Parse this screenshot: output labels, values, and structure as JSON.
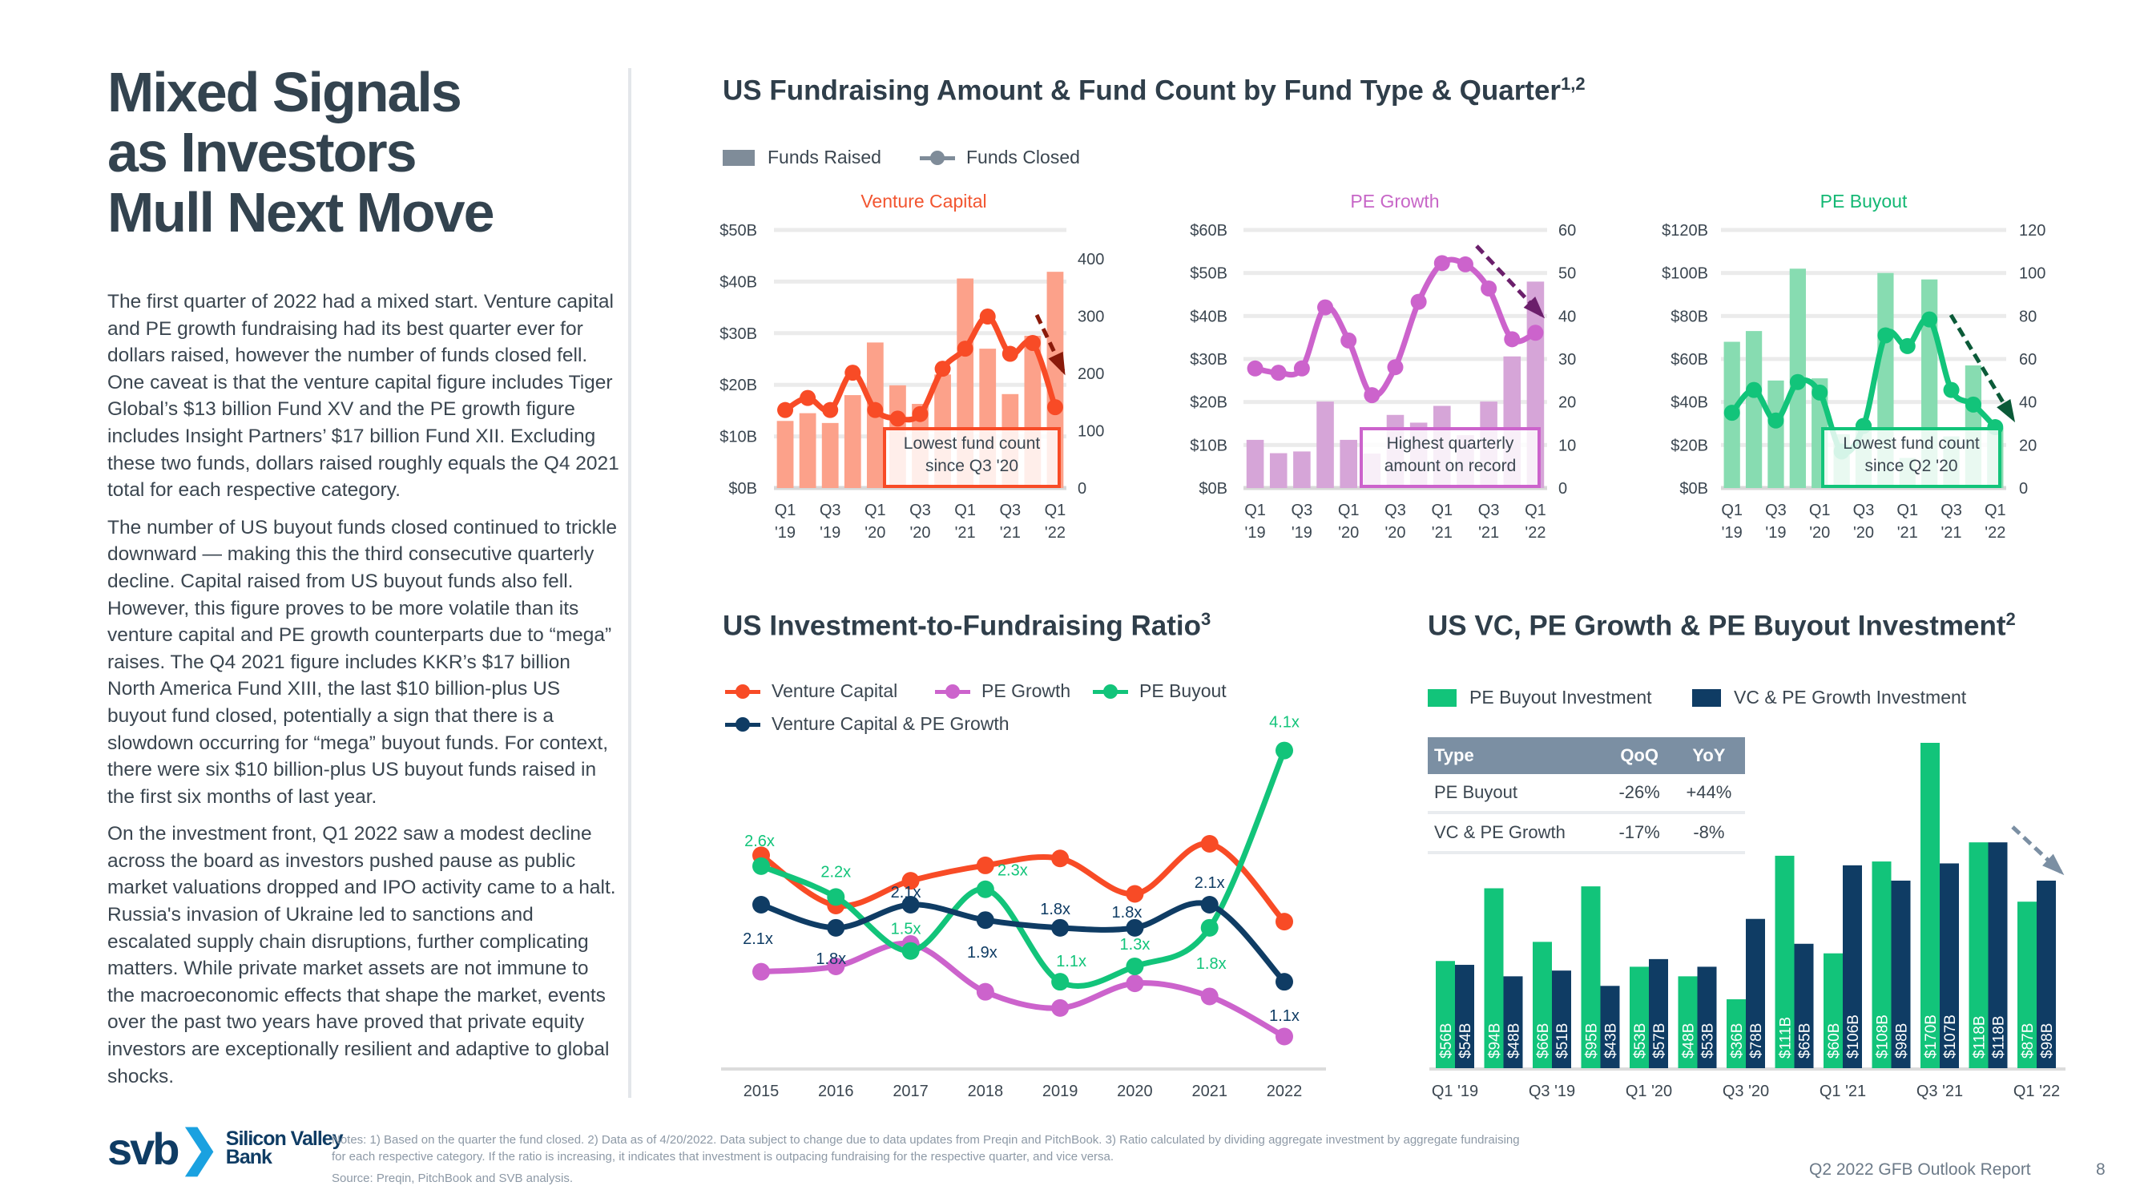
{
  "left": {
    "title_lines": [
      "Mixed Signals",
      "as Investors",
      "Mull Next Move"
    ],
    "paragraphs": [
      "The first quarter of 2022 had a mixed start. Venture capital and PE growth fundraising had its best quarter ever for dollars raised, however the number of funds closed fell. One caveat is that the venture capital figure includes Tiger Global’s $13 billion Fund XV and the PE growth figure includes Insight Partners’ $17 billion Fund XII. Excluding these two funds, dollars raised roughly equals the Q4 2021 total for each respective category.",
      "The number of US buyout funds closed continued to trickle downward — making this the third consecutive quarterly decline. Capital raised from US buyout funds also fell. However, this figure proves to be more volatile than its venture capital and PE growth counterparts due to “mega” raises. The Q4 2021 figure includes KKR’s $17 billion North America Fund XIII, the last $10 billion-plus US buyout fund closed, potentially a sign that there is a slowdown occurring for “mega” buyout funds. For context, there were six $10 billion-plus US buyout funds raised in the first six months of last year.",
      "On the investment front, Q1 2022 saw a modest decline across the board as investors pushed pause as public market valuations dropped and IPO activity came to a halt. Russia's invasion of Ukraine led to sanctions and escalated supply chain disruptions, further complicating matters. While private market assets are not immune to the macroeconomic effects that shape the market, events over the past two years have proved that private equity investors are exceptionally resilient and adaptive to global shocks."
    ]
  },
  "fundraising": {
    "title": "US Fundraising Amount & Fund Count by Fund Type & Quarter",
    "title_sup": "1,2",
    "legend": {
      "bars": "Funds Raised",
      "line": "Funds Closed"
    },
    "legend_colors": {
      "bars": "#7f8c99",
      "line": "#7f8c99"
    }
  },
  "ratio": {
    "title": "US Investment-to-Fundraising Ratio",
    "title_sup": "3"
  },
  "investment": {
    "title": "US VC, PE Growth & PE Buyout Investment",
    "title_sup": "2",
    "table": {
      "headers": [
        "Type",
        "QoQ",
        "YoY"
      ],
      "rows": [
        [
          "PE Buyout",
          "-26%",
          "+44%"
        ],
        [
          "VC & PE Growth",
          "-17%",
          "-8%"
        ]
      ]
    }
  },
  "chart_data": [
    {
      "type": "bar+line",
      "title": "Venture Capital",
      "categories": [
        "Q1 '19",
        "Q2 '19",
        "Q3 '19",
        "Q4 '19",
        "Q1 '20",
        "Q2 '20",
        "Q3 '20",
        "Q4 '20",
        "Q1 '21",
        "Q2 '21",
        "Q3 '21",
        "Q4 '21",
        "Q1 '22"
      ],
      "x_tick_labels": [
        [
          "Q1",
          "'19"
        ],
        [
          "Q3",
          "'19"
        ],
        [
          "Q1",
          "'20"
        ],
        [
          "Q3",
          "'20"
        ],
        [
          "Q1",
          "'21"
        ],
        [
          "Q3",
          "'21"
        ],
        [
          "Q1",
          "'22"
        ]
      ],
      "bar_series": {
        "name": "Funds Raised",
        "unit": "$B",
        "values": [
          13,
          14.5,
          12.6,
          18,
          28.2,
          19.9,
          16.3,
          22,
          40.6,
          27,
          18.2,
          29.5,
          41.9
        ]
      },
      "line_series": {
        "name": "Funds Closed",
        "values": [
          136,
          157,
          136,
          201,
          136,
          121,
          129,
          208,
          243,
          299,
          234,
          253,
          141
        ]
      },
      "ylim_left": [
        0,
        50
      ],
      "ylim_right": [
        0,
        450
      ],
      "left_ticks": [
        "$0B",
        "$10B",
        "$20B",
        "$30B",
        "$40B",
        "$50B"
      ],
      "left_tick_values": [
        0,
        10,
        20,
        30,
        40,
        50
      ],
      "right_ticks": [
        "0",
        "100",
        "200",
        "300",
        "400"
      ],
      "right_tick_values": [
        0,
        100,
        200,
        300,
        400
      ],
      "annotation": [
        "Lowest fund count",
        "since Q3 '20"
      ],
      "colors": {
        "bar": "#fca18a",
        "line": "#f84b26",
        "arrow": "#8a1a0a",
        "title": "#f25530"
      }
    },
    {
      "type": "bar+line",
      "title": "PE Growth",
      "categories": [
        "Q1 '19",
        "Q2 '19",
        "Q3 '19",
        "Q4 '19",
        "Q1 '20",
        "Q2 '20",
        "Q3 '20",
        "Q4 '20",
        "Q1 '21",
        "Q2 '21",
        "Q3 '21",
        "Q4 '21",
        "Q1 '22"
      ],
      "x_tick_labels": [
        [
          "Q1",
          "'19"
        ],
        [
          "Q3",
          "'19"
        ],
        [
          "Q1",
          "'20"
        ],
        [
          "Q3",
          "'20"
        ],
        [
          "Q1",
          "'21"
        ],
        [
          "Q3",
          "'21"
        ],
        [
          "Q1",
          "'22"
        ]
      ],
      "bar_series": {
        "name": "Funds Raised",
        "unit": "$B",
        "values": [
          11.2,
          8.1,
          8.5,
          20.1,
          11.2,
          8,
          17,
          15.2,
          19.1,
          12.3,
          20.1,
          30.6,
          48
        ]
      },
      "line_series": {
        "name": "Funds Closed",
        "values": [
          27.8,
          26.8,
          27.8,
          42,
          34.3,
          21.6,
          28.1,
          43.3,
          52.3,
          52,
          46.4,
          34.6,
          36.1
        ]
      },
      "ylim_left": [
        0,
        60
      ],
      "ylim_right": [
        0,
        60
      ],
      "left_ticks": [
        "$0B",
        "$10B",
        "$20B",
        "$30B",
        "$40B",
        "$50B",
        "$60B"
      ],
      "left_tick_values": [
        0,
        10,
        20,
        30,
        40,
        50,
        60
      ],
      "right_ticks": [
        "0",
        "10",
        "20",
        "30",
        "40",
        "50",
        "60"
      ],
      "right_tick_values": [
        0,
        10,
        20,
        30,
        40,
        50,
        60
      ],
      "annotation": [
        "Highest quarterly",
        "amount on record"
      ],
      "colors": {
        "bar": "#d6a5d8",
        "line": "#cc63cc",
        "arrow": "#6b1f6b",
        "title": "#c766c7"
      }
    },
    {
      "type": "bar+line",
      "title": "PE Buyout",
      "categories": [
        "Q1 '19",
        "Q2 '19",
        "Q3 '19",
        "Q4 '19",
        "Q1 '20",
        "Q2 '20",
        "Q3 '20",
        "Q4 '20",
        "Q1 '21",
        "Q2 '21",
        "Q3 '21",
        "Q4 '21",
        "Q1 '22"
      ],
      "x_tick_labels": [
        [
          "Q1",
          "'19"
        ],
        [
          "Q3",
          "'19"
        ],
        [
          "Q1",
          "'20"
        ],
        [
          "Q3",
          "'20"
        ],
        [
          "Q1",
          "'21"
        ],
        [
          "Q3",
          "'21"
        ],
        [
          "Q1",
          "'22"
        ]
      ],
      "bar_series": {
        "name": "Funds Raised",
        "unit": "$B",
        "values": [
          68,
          73,
          50,
          102,
          51,
          25,
          30,
          100,
          14,
          97,
          24,
          57,
          28
        ]
      },
      "line_series": {
        "name": "Funds Closed",
        "values": [
          35,
          45.6,
          31.4,
          49.3,
          44.4,
          17,
          28.9,
          71,
          66,
          78.4,
          45.6,
          38.8,
          28.3
        ]
      },
      "ylim_left": [
        0,
        120
      ],
      "ylim_right": [
        0,
        120
      ],
      "left_ticks": [
        "$0B",
        "$20B",
        "$40B",
        "$60B",
        "$80B",
        "$100B",
        "$120B"
      ],
      "left_tick_values": [
        0,
        20,
        40,
        60,
        80,
        100,
        120
      ],
      "right_ticks": [
        "0",
        "20",
        "40",
        "60",
        "80",
        "100",
        "120"
      ],
      "right_tick_values": [
        0,
        20,
        40,
        60,
        80,
        100,
        120
      ],
      "annotation": [
        "Lowest fund count",
        "since Q2 '20"
      ],
      "colors": {
        "bar": "#87dcb1",
        "line": "#12c47a",
        "arrow": "#0b5a38",
        "title": "#14b874"
      }
    },
    {
      "type": "line",
      "title": "US Investment-to-Fundraising Ratio",
      "x": [
        "2015",
        "2016",
        "2017",
        "2018",
        "2019",
        "2020",
        "2021",
        "2022"
      ],
      "ylim": [
        0,
        4.5
      ],
      "series": [
        {
          "name": "Venture Capital",
          "color": "#f84b26",
          "values": [
            2.74,
            2.09,
            2.41,
            2.61,
            2.7,
            2.24,
            2.89,
            1.88
          ],
          "labels": []
        },
        {
          "name": "PE Growth",
          "color": "#cc63cc",
          "values": [
            1.23,
            1.3,
            1.59,
            0.97,
            0.76,
            1.08,
            0.91,
            0.39
          ],
          "labels": []
        },
        {
          "name": "PE Buyout",
          "color": "#12c47a",
          "values": [
            2.6,
            2.2,
            1.5,
            2.3,
            1.1,
            1.3,
            1.8,
            4.1
          ],
          "labels": [
            "2.6x",
            "2.2x",
            "1.5x",
            "2.3x",
            "1.1x",
            "1.3x",
            "1.8x",
            "4.1x"
          ]
        },
        {
          "name": "Venture Capital & PE Growth",
          "color": "#0f3c64",
          "values": [
            2.1,
            1.8,
            2.1,
            1.9,
            1.8,
            1.8,
            2.1,
            1.1
          ],
          "labels": [
            "2.1x",
            "1.8x",
            "2.1x",
            "1.9x",
            "1.8x",
            "1.8x",
            "2.1x",
            "1.1x"
          ]
        }
      ]
    },
    {
      "type": "bar",
      "title": "US VC, PE Growth & PE Buyout Investment",
      "categories": [
        "Q1 '19",
        "Q2 '19",
        "Q3 '19",
        "Q4 '19",
        "Q1 '20",
        "Q2 '20",
        "Q3 '20",
        "Q4 '20",
        "Q1 '21",
        "Q2 '21",
        "Q3 '21",
        "Q4 '21",
        "Q1 '22"
      ],
      "x_tick_labels": [
        "Q1 '19",
        "Q3 '19",
        "Q1 '20",
        "Q3 '20",
        "Q1 '21",
        "Q3 '21",
        "Q1 '22"
      ],
      "ylim": [
        0,
        170
      ],
      "series": [
        {
          "name": "PE Buyout Investment",
          "color": "#12c47a",
          "values": [
            56,
            94,
            66,
            95,
            53,
            48,
            36,
            111,
            60,
            108,
            170,
            118,
            87
          ],
          "labels": [
            "$56B",
            "$94B",
            "$66B",
            "$95B",
            "$53B",
            "$48B",
            "$36B",
            "$111B",
            "$60B",
            "$108B",
            "$170B",
            "$118B",
            "$87B"
          ]
        },
        {
          "name": "VC & PE Growth Investment",
          "color": "#0f3c64",
          "values": [
            54,
            48,
            51,
            43,
            57,
            53,
            78,
            65,
            106,
            98,
            107,
            118,
            98
          ],
          "labels": [
            "$54B",
            "$48B",
            "$51B",
            "$43B",
            "$57B",
            "$53B",
            "$78B",
            "$65B",
            "$106B",
            "$98B",
            "$107B",
            "$118B",
            "$98B"
          ]
        }
      ],
      "arrow_color": "#7b8fa3"
    }
  ],
  "footer": {
    "logo": {
      "mark": "svb",
      "name_line1": "Silicon Valley",
      "name_line2": "Bank"
    },
    "notes_line1": "Notes: 1) Based on the quarter the fund closed. 2) Data as of 4/20/2022. Data subject to change due to data updates from Preqin and PitchBook. 3) Ratio calculated by dividing aggregate investment by aggregate fundraising",
    "notes_line2": "for each respective category. If the ratio is increasing, it indicates that investment is outpacing fundraising for the respective quarter, and vice versa.",
    "source": "Source: Preqin, PitchBook and SVB analysis.",
    "report": "Q2 2022 GFB Outlook Report",
    "page": "8"
  }
}
